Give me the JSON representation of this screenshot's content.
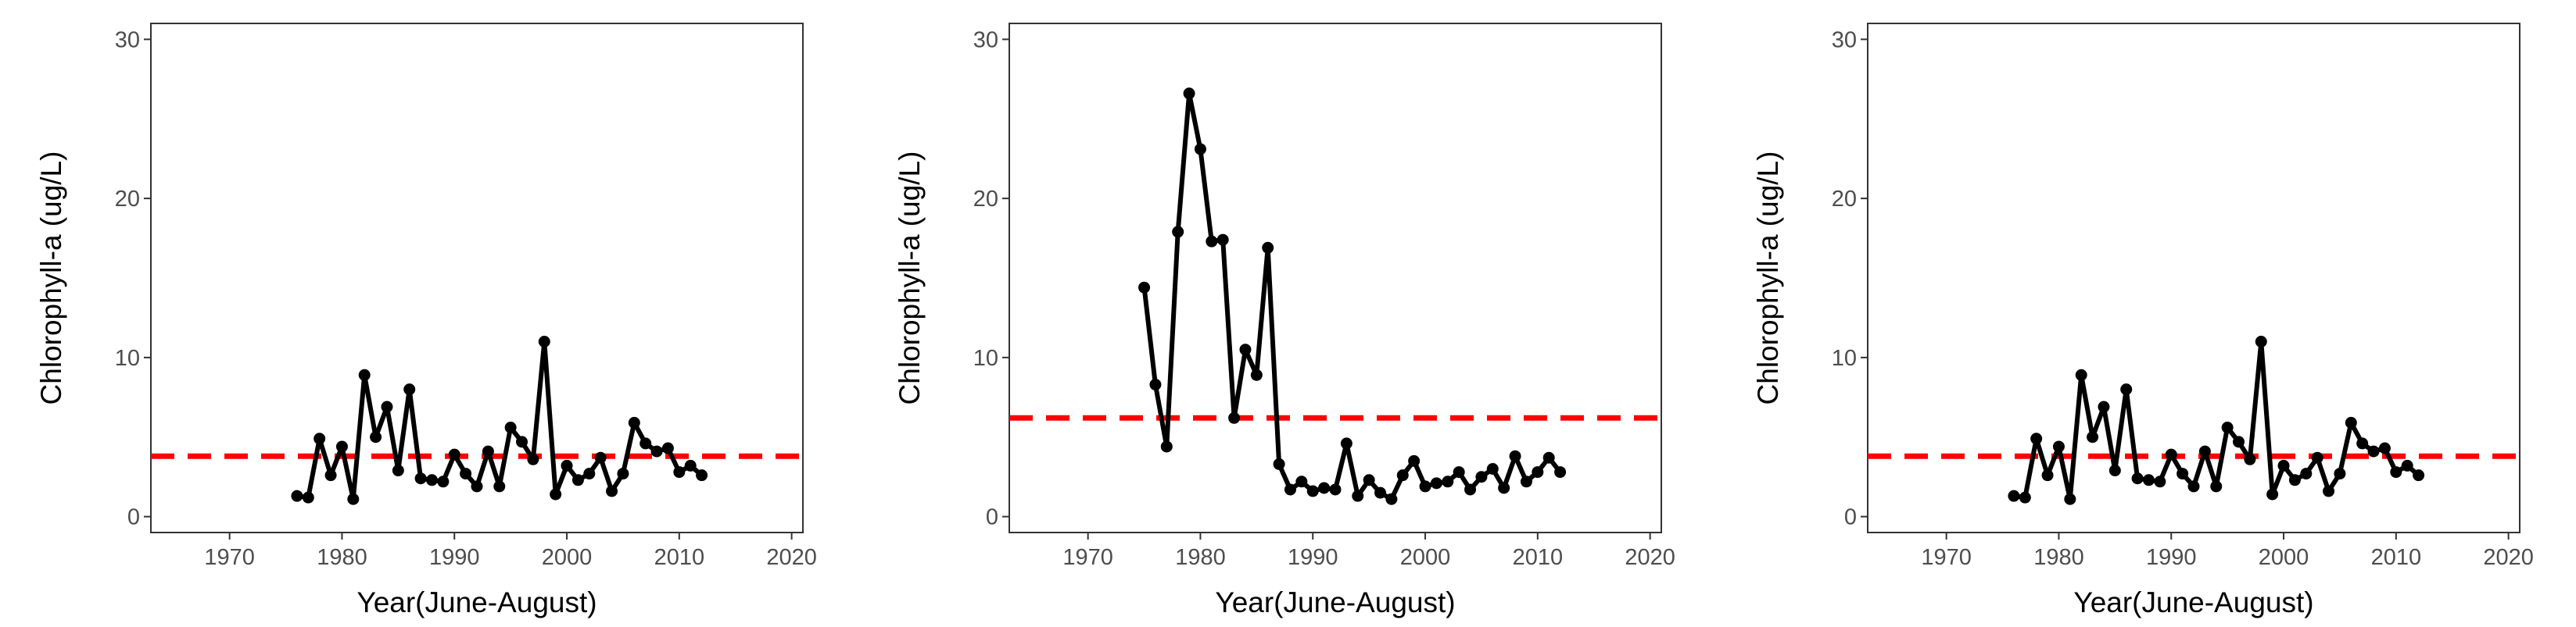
{
  "chart_data": [
    {
      "type": "line",
      "xlabel": "Year(June-August)",
      "ylabel": "Chlorophyll-a (ug/L)",
      "xlim": [
        1963,
        2021
      ],
      "ylim": [
        -1,
        31
      ],
      "xticks": [
        1970,
        1980,
        1990,
        2000,
        2010,
        2020
      ],
      "yticks": [
        0,
        10,
        20,
        30
      ],
      "grid": false,
      "colors": {
        "series": "#000000",
        "reference": "#ff0000"
      },
      "reference_line": {
        "y": 3.8,
        "style": "dashed"
      },
      "series": [
        {
          "x": [
            1976,
            1977,
            1978,
            1979,
            1980,
            1981,
            1982,
            1983,
            1984,
            1985,
            1986,
            1987,
            1988,
            1989,
            1990,
            1991,
            1992,
            1993,
            1994,
            1995,
            1996,
            1997,
            1998,
            1999,
            2000,
            2001,
            2002,
            2003,
            2004,
            2005,
            2006,
            2007,
            2008,
            2009,
            2010,
            2011,
            2012
          ],
          "y": [
            1.3,
            1.2,
            4.9,
            2.6,
            4.4,
            1.1,
            8.9,
            5.0,
            6.9,
            2.9,
            8.0,
            2.4,
            2.3,
            2.2,
            3.9,
            2.7,
            1.9,
            4.1,
            1.9,
            5.6,
            4.7,
            3.6,
            11.0,
            1.4,
            3.2,
            2.3,
            2.7,
            3.7,
            1.6,
            2.7,
            5.9,
            4.6,
            4.1,
            4.3,
            2.8,
            3.2,
            2.6
          ]
        }
      ]
    },
    {
      "type": "line",
      "xlabel": "Year(June-August)",
      "ylabel": "Chlorophyll-a (ug/L)",
      "xlim": [
        1963,
        2021
      ],
      "ylim": [
        -1,
        31
      ],
      "xticks": [
        1970,
        1980,
        1990,
        2000,
        2010,
        2020
      ],
      "yticks": [
        0,
        10,
        20,
        30
      ],
      "grid": false,
      "colors": {
        "series": "#000000",
        "reference": "#ff0000"
      },
      "reference_line": {
        "y": 6.2,
        "style": "dashed"
      },
      "series": [
        {
          "x": [
            1975,
            1976,
            1977,
            1978,
            1979,
            1980,
            1981,
            1982,
            1983,
            1984,
            1985,
            1986,
            1987,
            1988,
            1989,
            1990,
            1991,
            1992,
            1993,
            1994,
            1995,
            1996,
            1997,
            1998,
            1999,
            2000,
            2001,
            2002,
            2003,
            2004,
            2005,
            2006,
            2007,
            2008,
            2009,
            2010,
            2011,
            2012
          ],
          "y": [
            14.4,
            8.3,
            4.4,
            17.9,
            26.6,
            23.1,
            17.3,
            17.4,
            6.2,
            10.5,
            8.9,
            16.9,
            3.3,
            1.7,
            2.2,
            1.6,
            1.8,
            1.7,
            4.6,
            1.3,
            2.3,
            1.5,
            1.1,
            2.6,
            3.5,
            1.9,
            2.1,
            2.2,
            2.8,
            1.7,
            2.5,
            3.0,
            1.8,
            3.8,
            2.2,
            2.8,
            3.7,
            2.8
          ]
        }
      ]
    },
    {
      "type": "line",
      "xlabel": "Year(June-August)",
      "ylabel": "Chlorophyll-a (ug/L)",
      "xlim": [
        1963,
        2021
      ],
      "ylim": [
        -1,
        31
      ],
      "xticks": [
        1970,
        1980,
        1990,
        2000,
        2010,
        2020
      ],
      "yticks": [
        0,
        10,
        20,
        30
      ],
      "grid": false,
      "colors": {
        "series": "#000000",
        "reference": "#ff0000"
      },
      "reference_line": {
        "y": 3.8,
        "style": "dashed"
      },
      "series": [
        {
          "x": [
            1976,
            1977,
            1978,
            1979,
            1980,
            1981,
            1982,
            1983,
            1984,
            1985,
            1986,
            1987,
            1988,
            1989,
            1990,
            1991,
            1992,
            1993,
            1994,
            1995,
            1996,
            1997,
            1998,
            1999,
            2000,
            2001,
            2002,
            2003,
            2004,
            2005,
            2006,
            2007,
            2008,
            2009,
            2010,
            2011,
            2012
          ],
          "y": [
            1.3,
            1.2,
            4.9,
            2.6,
            4.4,
            1.1,
            8.9,
            5.0,
            6.9,
            2.9,
            8.0,
            2.4,
            2.3,
            2.2,
            3.9,
            2.7,
            1.9,
            4.1,
            1.9,
            5.6,
            4.7,
            3.6,
            11.0,
            1.4,
            3.2,
            2.3,
            2.7,
            3.7,
            1.6,
            2.7,
            5.9,
            4.6,
            4.1,
            4.3,
            2.8,
            3.2,
            2.6
          ]
        }
      ]
    }
  ]
}
